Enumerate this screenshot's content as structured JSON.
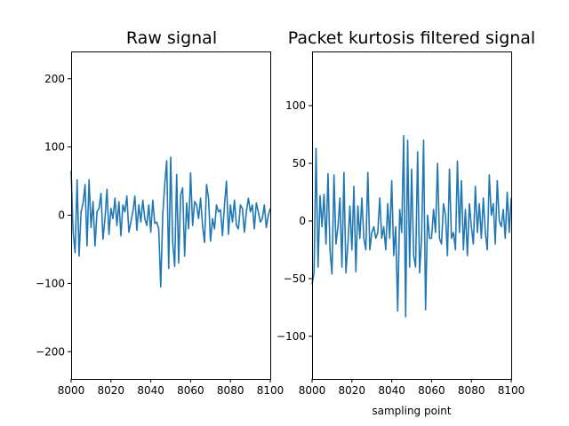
{
  "chart_data": [
    {
      "type": "line",
      "title": "Raw signal",
      "xlabel": "",
      "ylabel": "",
      "xlim": [
        8000,
        8100
      ],
      "ylim": [
        -240,
        240
      ],
      "xticks": [
        8000,
        8020,
        8040,
        8060,
        8080,
        8100
      ],
      "yticks": [
        -200,
        -100,
        0,
        100,
        200
      ],
      "color": "#1f77b4",
      "series": [
        {
          "x": [
            8000,
            8001,
            8002,
            8003,
            8004,
            8005,
            8006,
            8007,
            8008,
            8009,
            8010,
            8011,
            8012,
            8013,
            8014,
            8015,
            8016,
            8017,
            8018,
            8019,
            8020,
            8021,
            8022,
            8023,
            8024,
            8025,
            8026,
            8027,
            8028,
            8029,
            8030,
            8031,
            8032,
            8033,
            8034,
            8035,
            8036,
            8037,
            8038,
            8039,
            8040,
            8041,
            8042,
            8043,
            8044,
            8045,
            8046,
            8047,
            8048,
            8049,
            8050,
            8051,
            8052,
            8053,
            8054,
            8055,
            8056,
            8057,
            8058,
            8059,
            8060,
            8061,
            8062,
            8063,
            8064,
            8065,
            8066,
            8067,
            8068,
            8069,
            8070,
            8071,
            8072,
            8073,
            8074,
            8075,
            8076,
            8077,
            8078,
            8079,
            8080,
            8081,
            8082,
            8083,
            8084,
            8085,
            8086,
            8087,
            8088,
            8089,
            8090,
            8091,
            8092,
            8093,
            8094,
            8095,
            8096,
            8097,
            8098,
            8099,
            8100
          ],
          "values": [
            65,
            -25,
            -55,
            52,
            -60,
            5,
            18,
            45,
            -45,
            52,
            -18,
            20,
            -45,
            5,
            10,
            32,
            -35,
            -5,
            38,
            -28,
            10,
            -5,
            25,
            -15,
            20,
            -30,
            15,
            5,
            28,
            -25,
            -10,
            5,
            28,
            -22,
            15,
            -10,
            22,
            -5,
            -15,
            15,
            -25,
            22,
            -12,
            -10,
            -20,
            -105,
            0,
            45,
            80,
            -78,
            85,
            -40,
            -75,
            60,
            -70,
            30,
            40,
            -60,
            18,
            -20,
            62,
            -15,
            20,
            15,
            -5,
            25,
            -15,
            -40,
            45,
            25,
            -38,
            -5,
            -20,
            15,
            5,
            8,
            -30,
            15,
            50,
            -28,
            15,
            -10,
            22,
            -15,
            -20,
            15,
            10,
            -25,
            5,
            25,
            5,
            15,
            -20,
            18,
            5,
            -10,
            -5,
            15,
            -18,
            0,
            10
          ]
        }
      ]
    },
    {
      "type": "line",
      "title": "Packet kurtosis filtered signal",
      "xlabel": "sampling point",
      "ylabel": "",
      "xlim": [
        8000,
        8100
      ],
      "ylim": [
        -137,
        147
      ],
      "xticks": [
        8000,
        8020,
        8040,
        8060,
        8080,
        8100
      ],
      "yticks": [
        -100,
        -50,
        0,
        50,
        100
      ],
      "color": "#1f77b4",
      "series": [
        {
          "x": [
            8000,
            8001,
            8002,
            8003,
            8004,
            8005,
            8006,
            8007,
            8008,
            8009,
            8010,
            8011,
            8012,
            8013,
            8014,
            8015,
            8016,
            8017,
            8018,
            8019,
            8020,
            8021,
            8022,
            8023,
            8024,
            8025,
            8026,
            8027,
            8028,
            8029,
            8030,
            8031,
            8032,
            8033,
            8034,
            8035,
            8036,
            8037,
            8038,
            8039,
            8040,
            8041,
            8042,
            8043,
            8044,
            8045,
            8046,
            8047,
            8048,
            8049,
            8050,
            8051,
            8052,
            8053,
            8054,
            8055,
            8056,
            8057,
            8058,
            8059,
            8060,
            8061,
            8062,
            8063,
            8064,
            8065,
            8066,
            8067,
            8068,
            8069,
            8070,
            8071,
            8072,
            8073,
            8074,
            8075,
            8076,
            8077,
            8078,
            8079,
            8080,
            8081,
            8082,
            8083,
            8084,
            8085,
            8086,
            8087,
            8088,
            8089,
            8090,
            8091,
            8092,
            8093,
            8094,
            8095,
            8096,
            8097,
            8098,
            8099,
            8100
          ],
          "values": [
            -55,
            -45,
            63,
            -40,
            22,
            -5,
            23,
            -20,
            41,
            -25,
            -46,
            40,
            -20,
            -5,
            20,
            -40,
            42,
            -45,
            -20,
            13,
            -25,
            30,
            -44,
            13,
            -15,
            20,
            -15,
            -25,
            42,
            -25,
            -10,
            -5,
            -15,
            -10,
            20,
            -15,
            -5,
            -25,
            15,
            -15,
            35,
            -30,
            -5,
            -78,
            10,
            -10,
            74,
            -83,
            70,
            -40,
            45,
            -30,
            -40,
            60,
            -45,
            -15,
            70,
            -77,
            5,
            -15,
            -15,
            10,
            -10,
            50,
            -15,
            -20,
            15,
            5,
            -30,
            45,
            -15,
            -10,
            -25,
            52,
            -10,
            35,
            -25,
            10,
            -30,
            15,
            -5,
            -20,
            30,
            -10,
            15,
            -15,
            20,
            -10,
            -25,
            40,
            5,
            15,
            -20,
            35,
            0,
            -5,
            10,
            -15,
            25,
            -10,
            20
          ]
        }
      ]
    }
  ]
}
